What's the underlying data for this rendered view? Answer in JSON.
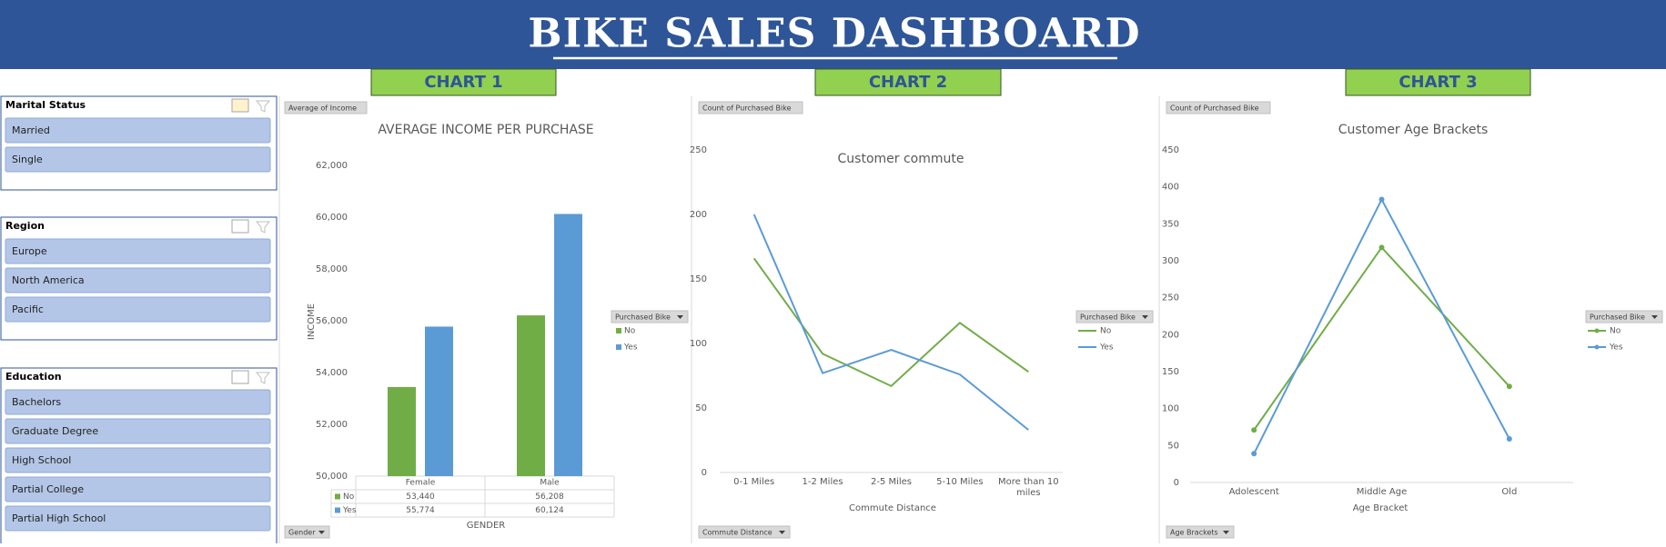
{
  "header": {
    "title": "BIKE SALES DASHBOARD",
    "chart_labels": [
      "CHART 1",
      "CHART 2",
      "CHART 3"
    ]
  },
  "slicers": [
    {
      "title": "Marital Status",
      "items": [
        "Married",
        "Single"
      ]
    },
    {
      "title": "Region",
      "items": [
        "Europe",
        "North America",
        "Pacific"
      ]
    },
    {
      "title": "Education",
      "items": [
        "Bachelors",
        "Graduate Degree",
        "High School",
        "Partial College",
        "Partial High School"
      ]
    }
  ],
  "chart_data": [
    {
      "type": "bar",
      "title": "AVERAGE INCOME PER PURCHASE",
      "x_label": "GENDER",
      "y_label": "INCOME",
      "value_button": "Average of Income",
      "axis_button": "Gender",
      "legend_title": "Purchased Bike",
      "categories": [
        "Female",
        "Male"
      ],
      "series": [
        {
          "name": "No",
          "color": "#70ad47",
          "values": [
            53440,
            56208
          ],
          "value_labels": [
            "53,440",
            "56,208"
          ]
        },
        {
          "name": "Yes",
          "color": "#5b9bd5",
          "values": [
            55774,
            60124
          ],
          "value_labels": [
            "55,774",
            "60,124"
          ]
        }
      ],
      "ylim": [
        50000,
        62000
      ],
      "yticks": [
        {
          "value": 50000,
          "label": "50,000"
        },
        {
          "value": 52000,
          "label": "52,000"
        },
        {
          "value": 54000,
          "label": "54,000"
        },
        {
          "value": 56000,
          "label": "56,000"
        },
        {
          "value": 58000,
          "label": "58,000"
        },
        {
          "value": 60000,
          "label": "60,000"
        },
        {
          "value": 62000,
          "label": "62,000"
        }
      ],
      "grid": false
    },
    {
      "type": "line",
      "title": "Customer commute",
      "x_label": "Commute Distance",
      "value_button": "Count of Purchased Bike",
      "axis_button": "Commute Distance",
      "legend_title": "Purchased Bike",
      "categories": [
        "0-1 Miles",
        "1-2 Miles",
        "2-5 Miles",
        "5-10 Miles",
        "More than 10 miles"
      ],
      "series": [
        {
          "name": "No",
          "color": "#70ad47",
          "values": [
            166,
            92,
            67,
            116,
            78
          ]
        },
        {
          "name": "Yes",
          "color": "#5b9bd5",
          "values": [
            200,
            77,
            95,
            76,
            33
          ]
        }
      ],
      "ylim": [
        0,
        250
      ],
      "yticks": [
        0,
        50,
        100,
        150,
        200,
        250
      ],
      "grid": false,
      "markers": false
    },
    {
      "type": "line",
      "title": "Customer Age Brackets",
      "x_label": "Age Bracket",
      "value_button": "Count of Purchased Bike",
      "axis_button": "Age Brackets",
      "legend_title": "Purchased Bike",
      "categories": [
        "Adolescent",
        "Middle Age",
        "Old"
      ],
      "series": [
        {
          "name": "No",
          "color": "#70ad47",
          "values": [
            71,
            318,
            130
          ]
        },
        {
          "name": "Yes",
          "color": "#5b9bd5",
          "values": [
            39,
            383,
            59
          ]
        }
      ],
      "ylim": [
        0,
        450
      ],
      "yticks": [
        0,
        50,
        100,
        150,
        200,
        250,
        300,
        350,
        400,
        450
      ],
      "grid": false,
      "markers": true
    }
  ]
}
